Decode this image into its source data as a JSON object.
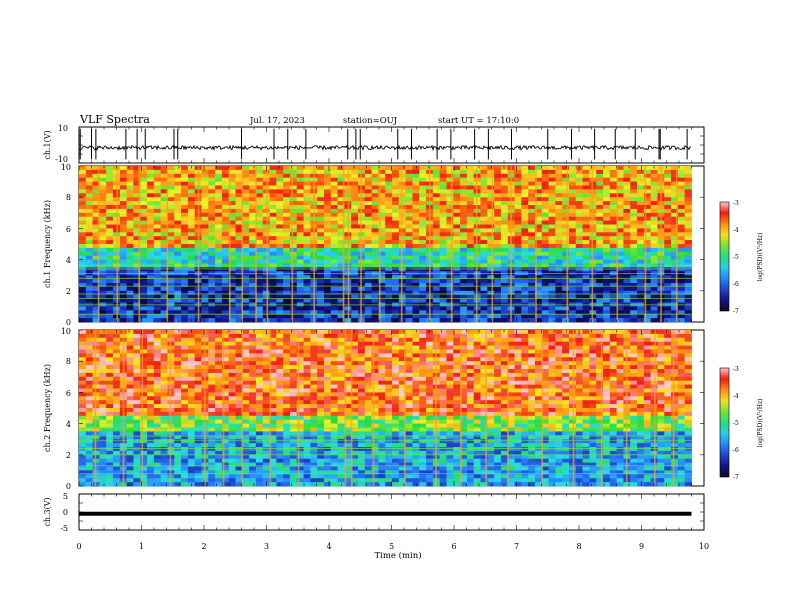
{
  "header": {
    "title": "VLF Spectra",
    "date": "Jul. 17, 2023",
    "station": "station=OUJ",
    "start": "start UT = 17:10:0"
  },
  "chart_data": [
    {
      "type": "line",
      "panel": "ch1-waveform",
      "ylabel": "ch.1(V)",
      "ylim": [
        -10,
        10
      ],
      "y_ticks": [
        "10",
        "-10"
      ],
      "xlim": [
        0,
        10
      ],
      "data_end": 9.8,
      "baseline": -1.5,
      "spike_x": [
        0.02,
        0.2,
        0.27,
        0.75,
        0.93,
        1.06,
        1.52,
        1.58,
        2.6,
        3.12,
        3.34,
        3.63,
        4.3,
        4.43,
        4.5,
        5.1,
        5.32,
        5.73,
        5.95,
        6.33,
        6.55,
        6.92,
        7.5,
        7.88,
        8.25,
        8.58,
        8.9,
        9.28,
        9.3,
        9.73
      ]
    },
    {
      "type": "heatmap",
      "panel": "ch1-spectrogram",
      "ylabel": "ch.1 Frequency (kHz)",
      "ylim": [
        0,
        10
      ],
      "y_ticks": [
        "0",
        "2",
        "4",
        "6",
        "8",
        "10"
      ],
      "xlim": [
        0,
        10
      ],
      "data_end": 9.8,
      "colorbar": {
        "label": "log(PSD)(V²/Hz)",
        "range": [
          -7,
          -3
        ],
        "ticks": [
          "-3",
          "-4",
          "-5",
          "-6",
          "-7"
        ]
      },
      "upper_band_level": -4.0,
      "lower_band_level": -6.3,
      "transition_khz": 4.2,
      "tones_khz": [
        0.5,
        1.1,
        1.5,
        1.8,
        2.3,
        2.8,
        3.1,
        3.4,
        3.6
      ],
      "impulse_x": [
        0.3,
        0.6,
        0.95,
        1.4,
        1.9,
        2.4,
        2.6,
        2.82,
        3.0,
        3.4,
        3.75,
        4.22,
        4.3,
        4.5,
        4.8,
        5.15,
        5.6,
        5.95,
        6.35,
        6.6,
        6.9,
        7.3,
        7.8,
        8.2,
        8.6,
        9.05,
        9.3,
        9.55
      ]
    },
    {
      "type": "heatmap",
      "panel": "ch2-spectrogram",
      "ylabel": "ch.2 Frequency (kHz)",
      "ylim": [
        0,
        10
      ],
      "y_ticks": [
        "0",
        "2",
        "4",
        "6",
        "8",
        "10"
      ],
      "xlim": [
        0,
        10
      ],
      "data_end": 9.8,
      "colorbar": {
        "label": "log(PSD)(V²/Hz)",
        "range": [
          -7,
          -3
        ],
        "ticks": [
          "-3",
          "-4",
          "-5",
          "-6",
          "-7"
        ]
      },
      "upper_band_level": -3.6,
      "lower_band_level": -5.6,
      "transition_khz": 4.0,
      "tones_khz": [
        0.8,
        1.3,
        2.0,
        2.4,
        2.9,
        3.2,
        3.7
      ],
      "impulse_x": [
        0.25,
        0.7,
        1.0,
        1.45,
        2.0,
        2.3,
        2.6,
        3.05,
        3.5,
        4.25,
        4.35,
        4.7,
        5.2,
        5.7,
        6.1,
        6.5,
        6.85,
        7.4,
        7.9,
        8.35,
        8.75,
        9.2,
        9.5
      ]
    },
    {
      "type": "line",
      "panel": "ch3-waveform",
      "ylabel": "ch.3(V)",
      "ylim": [
        -5,
        5
      ],
      "y_ticks": [
        "5",
        "0",
        "-5"
      ],
      "xlim": [
        0,
        10
      ],
      "data_end": 9.8,
      "constant_value": -0.5,
      "xlabel": "Time (min)",
      "x_ticks": [
        "0",
        "1",
        "2",
        "3",
        "4",
        "5",
        "6",
        "7",
        "8",
        "9",
        "10"
      ]
    }
  ]
}
